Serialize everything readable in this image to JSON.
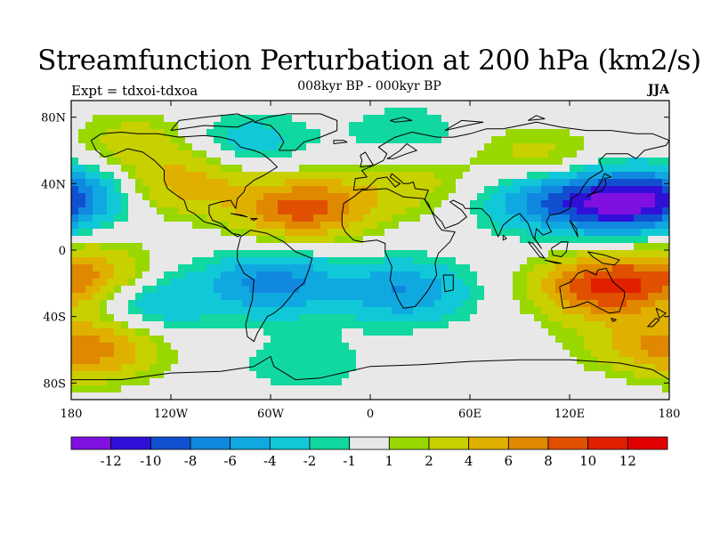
{
  "header": {
    "title": "Streamfunction Perturbation at 200 hPa (km2/s)",
    "left_string": "Expt = tdxoi-tdxoa",
    "center_string": "008kyr BP - 000kyr BP",
    "right_string": "JJA"
  },
  "map": {
    "projection": "cylindrical equidistant",
    "lon_range": [
      -180,
      180
    ],
    "lat_range": [
      -90,
      90
    ],
    "x_ticks": [
      {
        "lon": -180,
        "label": "180"
      },
      {
        "lon": -120,
        "label": "120W"
      },
      {
        "lon": -60,
        "label": "60W"
      },
      {
        "lon": 0,
        "label": "0"
      },
      {
        "lon": 60,
        "label": "60E"
      },
      {
        "lon": 120,
        "label": "120E"
      },
      {
        "lon": 180,
        "label": "180"
      }
    ],
    "y_ticks": [
      {
        "lat": 80,
        "label": "80N"
      },
      {
        "lat": 40,
        "label": "40N"
      },
      {
        "lat": 0,
        "label": "0"
      },
      {
        "lat": -40,
        "label": "40S"
      },
      {
        "lat": -80,
        "label": "80S"
      }
    ],
    "field_centers": [
      {
        "lon": -40,
        "lat": 25,
        "value": 9
      },
      {
        "lon": -110,
        "lat": 40,
        "value": 5
      },
      {
        "lon": -170,
        "lat": -15,
        "value": 6
      },
      {
        "lon": -165,
        "lat": -60,
        "value": 6
      },
      {
        "lon": 140,
        "lat": -22,
        "value": 10
      },
      {
        "lon": 160,
        "lat": -55,
        "value": 3
      },
      {
        "lon": 100,
        "lat": 55,
        "value": 3
      },
      {
        "lon": 20,
        "lat": 40,
        "value": 3
      },
      {
        "lon": -140,
        "lat": 65,
        "value": 3
      },
      {
        "lon": 152,
        "lat": 28,
        "value": -11
      },
      {
        "lon": 105,
        "lat": 30,
        "value": -6
      },
      {
        "lon": -58,
        "lat": -20,
        "value": -7
      },
      {
        "lon": 20,
        "lat": -25,
        "value": -6
      },
      {
        "lon": -130,
        "lat": -30,
        "value": -4
      },
      {
        "lon": -75,
        "lat": 65,
        "value": -3
      },
      {
        "lon": -177,
        "lat": 35,
        "value": -4
      },
      {
        "lon": 20,
        "lat": 70,
        "value": -2
      },
      {
        "lon": -40,
        "lat": -68,
        "value": -2
      }
    ],
    "colors": {
      "land_outline": "#000000",
      "frame": "#000000"
    }
  },
  "colorbar": {
    "levels": [
      "-12",
      "-10",
      "-8",
      "-6",
      "-4",
      "-2",
      "-1",
      "1",
      "2",
      "4",
      "6",
      "8",
      "10",
      "12"
    ],
    "colors": [
      "#8010e0",
      "#3010d8",
      "#1050d0",
      "#1088e0",
      "#10a8e0",
      "#10c8d8",
      "#10d8a0",
      "#e8e8e8",
      "#98d800",
      "#c8d000",
      "#e0b000",
      "#e08800",
      "#e05000",
      "#e02000",
      "#e00000"
    ]
  }
}
